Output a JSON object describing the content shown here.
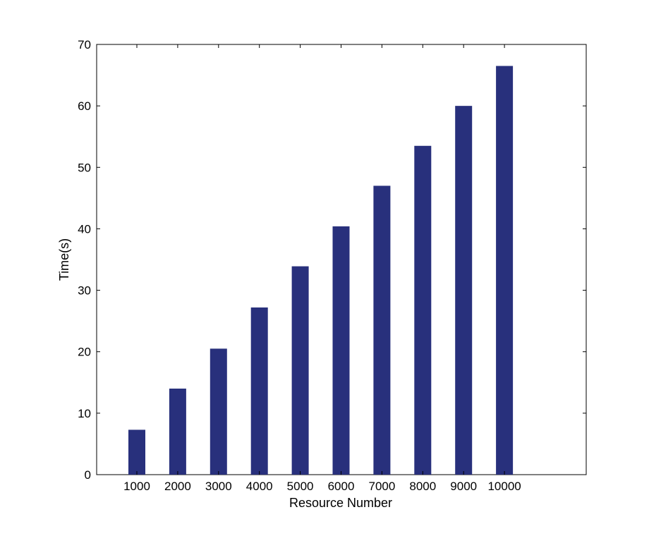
{
  "chart_data": {
    "type": "bar",
    "title": "",
    "xlabel": "Resource Number",
    "ylabel": "Time(s)",
    "categories": [
      "1000",
      "2000",
      "3000",
      "4000",
      "5000",
      "6000",
      "7000",
      "8000",
      "9000",
      "10000"
    ],
    "values": [
      7.3,
      14.0,
      20.5,
      27.2,
      33.9,
      40.4,
      47.0,
      53.5,
      60.0,
      66.5
    ],
    "ylim": [
      0,
      70
    ],
    "yticks": [
      "0",
      "10",
      "20",
      "30",
      "40",
      "50",
      "60",
      "70"
    ],
    "grid": false,
    "legend": "none",
    "colors": {
      "bar": "#28307C",
      "axis": "#000000"
    }
  }
}
